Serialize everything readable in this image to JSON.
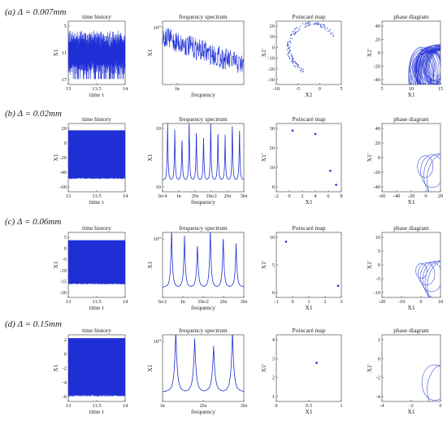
{
  "figure": {
    "rows": [
      {
        "case": "(a)",
        "delta": "Δ = 0.007mm"
      },
      {
        "case": "(b)",
        "delta": "Δ = 0.02mm"
      },
      {
        "case": "(c)",
        "delta": "Δ = 0.06mm"
      },
      {
        "case": "(d)",
        "delta": "Δ = 0.15mm"
      }
    ],
    "colors": {
      "series": "#1f2fd6",
      "axis": "#333333",
      "text": "#222222"
    }
  },
  "chart_data": [
    {
      "id": "a-time",
      "type": "line",
      "title": "time history",
      "xlabel": "time τ",
      "ylabel": "X1",
      "xlim": [
        13,
        14
      ],
      "ylim": [
        4,
        18
      ],
      "xticks": [
        "13",
        "13.5",
        "14"
      ],
      "yticks": [
        "5",
        "11",
        "17"
      ],
      "style": "chaotic",
      "band": [
        6,
        16
      ]
    },
    {
      "id": "a-freq",
      "type": "line",
      "title": "frequency spectrum",
      "xlabel": "frequency",
      "ylabel": "X1",
      "log_y": true,
      "yticks": [
        "10⁰"
      ],
      "xticks": [
        "fn"
      ],
      "style": "broadband"
    },
    {
      "id": "a-poin",
      "type": "scatter",
      "title": "Poincaré map",
      "xlabel": "X1",
      "ylabel": "X1'",
      "xlim": [
        -10,
        5
      ],
      "ylim": [
        -32,
        20
      ],
      "xticks": [
        "-10",
        "-5",
        "0",
        "5"
      ],
      "yticks": [
        "20",
        "10",
        "0",
        "-10",
        "-20",
        "-30"
      ],
      "style": "chaotic"
    },
    {
      "id": "a-phase",
      "type": "line",
      "title": "phase diagram",
      "xlabel": "X1",
      "ylabel": "X1'",
      "xlim": [
        0,
        20
      ],
      "ylim": [
        -40,
        40
      ],
      "xticks": [
        "5",
        "10",
        "15"
      ],
      "yticks": [
        "40",
        "20",
        "0",
        "-20",
        "-40"
      ],
      "style": "chaotic"
    },
    {
      "id": "b-time",
      "type": "line",
      "title": "time history",
      "xlabel": "time τ",
      "ylabel": "X1",
      "xlim": [
        13,
        14
      ],
      "ylim": [
        -60,
        20
      ],
      "xticks": [
        "13",
        "13.5",
        "14"
      ],
      "yticks": [
        "20",
        "0",
        "-20",
        "-40",
        "-60"
      ],
      "style": "periodic",
      "band": [
        -45,
        12
      ]
    },
    {
      "id": "b-freq",
      "type": "line",
      "title": "frequency spectrum",
      "xlabel": "frequency",
      "ylabel": "X1",
      "log_y": true,
      "yticks": [
        "10",
        "10"
      ],
      "xticks": [
        "fn/4",
        "fn",
        "2fn",
        "3fn/2",
        "2fn",
        "3fn"
      ],
      "style": "peaks",
      "peaks": 11
    },
    {
      "id": "b-poin",
      "type": "scatter",
      "title": "Poincaré map",
      "xlabel": "X1",
      "ylabel": "X1'",
      "xlim": [
        -2,
        8
      ],
      "ylim": [
        -4,
        35
      ],
      "xticks": [
        "-2",
        "0",
        "2",
        "4",
        "6",
        "8"
      ],
      "yticks": [
        "30",
        "20",
        "10",
        "0"
      ],
      "x": [
        0.5,
        4,
        6.3,
        7.2
      ],
      "y": [
        31,
        29,
        8,
        0
      ]
    },
    {
      "id": "b-phase",
      "type": "line",
      "title": "phase diagram",
      "xlabel": "X1",
      "ylabel": "X1'",
      "xlim": [
        -60,
        20
      ],
      "ylim": [
        -40,
        40
      ],
      "xticks": [
        "-60",
        "-40",
        "-20",
        "0",
        "20"
      ],
      "yticks": [
        "40",
        "20",
        "0",
        "-20",
        "-40"
      ],
      "style": "loops",
      "loops": 4
    },
    {
      "id": "c-time",
      "type": "line",
      "title": "time history",
      "xlabel": "time τ",
      "ylabel": "X1",
      "xlim": [
        13,
        14
      ],
      "ylim": [
        -20,
        5
      ],
      "xticks": [
        "13",
        "13.5",
        "14"
      ],
      "yticks": [
        "5",
        "0",
        "-5",
        "-10",
        "-15",
        "-20"
      ],
      "style": "periodic",
      "band": [
        -15,
        2
      ]
    },
    {
      "id": "c-freq",
      "type": "line",
      "title": "frequency spectrum",
      "xlabel": "frequency",
      "ylabel": "X1",
      "log_y": true,
      "yticks": [
        "10⁰"
      ],
      "xticks": [
        "fn/2",
        "fn",
        "3fn/2",
        "2fn",
        "3fn"
      ],
      "style": "peaks",
      "peaks": 6
    },
    {
      "id": "c-poin",
      "type": "scatter",
      "title": "Poincaré map",
      "xlabel": "X1",
      "ylabel": "X1'",
      "xlim": [
        -1,
        3
      ],
      "ylim": [
        -2,
        12
      ],
      "xticks": [
        "-1",
        "0",
        "1",
        "2",
        "3"
      ],
      "yticks": [
        "10",
        "5",
        "0"
      ],
      "x": [
        -0.4,
        2.8
      ],
      "y": [
        10,
        0.5
      ]
    },
    {
      "id": "c-phase",
      "type": "line",
      "title": "phase diagram",
      "xlabel": "X1",
      "ylabel": "X1'",
      "xlim": [
        -20,
        10
      ],
      "ylim": [
        -10,
        10
      ],
      "xticks": [
        "-20",
        "-10",
        "0",
        "10"
      ],
      "yticks": [
        "10",
        "5",
        "0",
        "-5",
        "-10"
      ],
      "style": "loops",
      "loops": 6
    },
    {
      "id": "d-time",
      "type": "line",
      "title": "time history",
      "xlabel": "time τ",
      "ylabel": "X1",
      "xlim": [
        13,
        14
      ],
      "ylim": [
        -6,
        2
      ],
      "xticks": [
        "13",
        "13.5",
        "14"
      ],
      "yticks": [
        "2",
        "0",
        "-2",
        "-4",
        "-6"
      ],
      "style": "periodic",
      "band": [
        -5.4,
        1.6
      ]
    },
    {
      "id": "d-freq",
      "type": "line",
      "title": "frequency spectrum",
      "xlabel": "frequency",
      "ylabel": "X1",
      "log_y": true,
      "yticks": [
        "10⁰"
      ],
      "xticks": [
        "fn",
        "2fn",
        "3fn"
      ],
      "style": "peaks",
      "peaks": 4
    },
    {
      "id": "d-poin",
      "type": "scatter",
      "title": "Poincaré map",
      "xlabel": "X1",
      "ylabel": "X1'",
      "xlim": [
        0,
        1
      ],
      "ylim": [
        0,
        5
      ],
      "xticks": [
        "0",
        "0.5",
        "1"
      ],
      "yticks": [
        "4",
        "3",
        "2",
        "1"
      ],
      "x": [
        0.62
      ],
      "y": [
        2.9
      ]
    },
    {
      "id": "d-phase",
      "type": "line",
      "title": "phase diagram",
      "xlabel": "X1",
      "ylabel": "X1'",
      "xlim": [
        -5,
        1
      ],
      "ylim": [
        -5,
        3
      ],
      "xticks": [
        "-4",
        "-2",
        "0"
      ],
      "yticks": [
        "2",
        "0",
        "-2",
        "-4"
      ],
      "style": "loops",
      "loops": 2
    }
  ]
}
